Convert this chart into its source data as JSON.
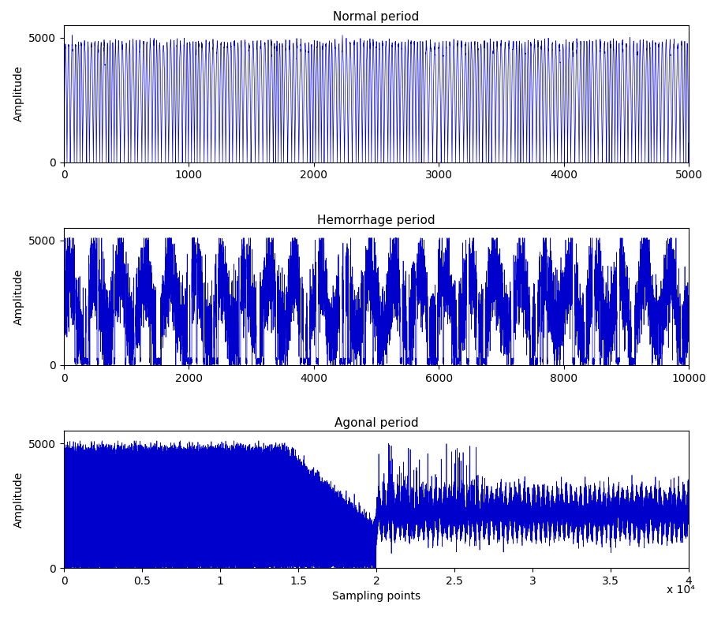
{
  "title1": "Normal period",
  "title2": "Hemorrhage period",
  "title3": "Agonal period",
  "ylabel": "Amplitude",
  "xlabel": "Sampling points",
  "line_color": "#0000cc",
  "line_width": 0.5,
  "ylim": [
    0,
    5500
  ],
  "yticks": [
    0,
    5000
  ],
  "plot1_xlim": [
    0,
    5000
  ],
  "plot1_xticks": [
    0,
    1000,
    2000,
    3000,
    4000,
    5000
  ],
  "plot2_xlim": [
    0,
    10000
  ],
  "plot2_xticks": [
    0,
    2000,
    4000,
    6000,
    8000,
    10000
  ],
  "plot3_xlim": [
    0,
    40000
  ],
  "plot3_xticks": [
    0,
    5000,
    10000,
    15000,
    20000,
    25000,
    30000,
    35000,
    40000
  ],
  "plot3_xticklabels": [
    "0",
    "0.5",
    "1",
    "1.5",
    "2",
    "2.5",
    "3",
    "3.5",
    "4"
  ],
  "plot3_xscale_label": "x 10⁴",
  "title_fontsize": 11,
  "label_fontsize": 10,
  "tick_fontsize": 10
}
